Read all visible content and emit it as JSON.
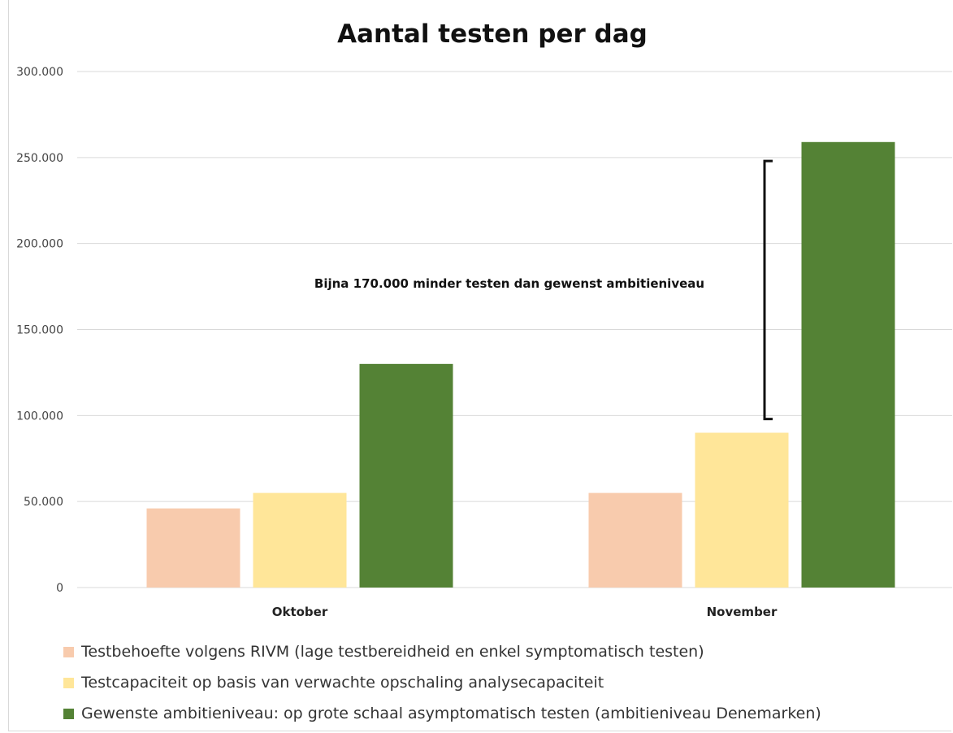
{
  "chart_data": {
    "type": "bar",
    "title": "Aantal testen per dag",
    "xlabel": "",
    "ylabel": "",
    "ylim": [
      0,
      300000
    ],
    "yticks": [
      0,
      50000,
      100000,
      150000,
      200000,
      250000,
      300000
    ],
    "ytick_labels": [
      "0",
      "50.000",
      "100.000",
      "150.000",
      "200.000",
      "250.000",
      "300.000"
    ],
    "categories": [
      "Oktober",
      "November"
    ],
    "grid": true,
    "legend_position": "bottom",
    "series": [
      {
        "name": "Testbehoefte volgens RIVM (lage testbereidheid en enkel symptomatisch testen)",
        "color": "#f8cbad",
        "values": [
          46000,
          55000
        ]
      },
      {
        "name": "Testcapaciteit op basis van verwachte opschaling analysecapaciteit",
        "color": "#ffe699",
        "values": [
          55000,
          90000
        ]
      },
      {
        "name": "Gewenste ambitieniveau: op grote schaal asymptomatisch testen (ambitieniveau Denemarken)",
        "color": "#548235",
        "values": [
          130000,
          259000
        ]
      }
    ],
    "annotation": {
      "text": "Bijna 170.000 minder testen dan gewenst ambitieniveau",
      "range": [
        98000,
        248000
      ],
      "category": "November"
    }
  }
}
